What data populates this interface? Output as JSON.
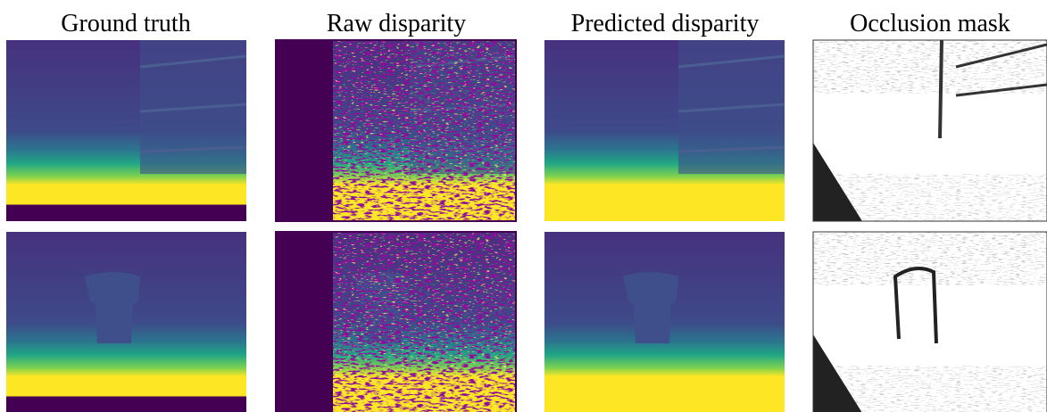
{
  "column_titles": [
    "Ground truth",
    "Raw disparity",
    "Predicted disparity",
    "Occlusion mask"
  ]
}
